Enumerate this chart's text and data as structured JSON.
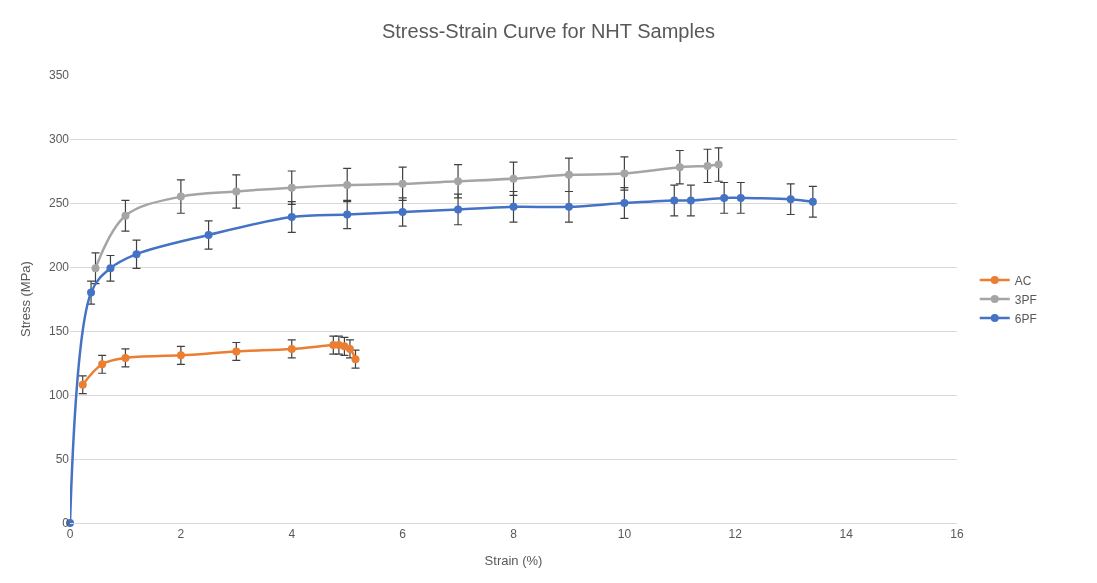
{
  "chart_data": {
    "type": "line",
    "title": "Stress-Strain Curve for NHT Samples",
    "xlabel": "Strain (%)",
    "ylabel": "Stress (MPa)",
    "series": [
      {
        "name": "AC",
        "color": "#ed7d31",
        "x": [
          0.23,
          0.58,
          1.0,
          2.0,
          3.0,
          4.0,
          4.75,
          4.85,
          4.95,
          5.05,
          5.15
        ],
        "values": [
          108,
          124,
          129,
          131,
          134,
          136,
          139,
          139,
          138,
          136,
          128
        ],
        "errors": [
          7,
          7,
          7,
          7,
          7,
          7,
          7,
          7,
          7,
          7,
          7
        ]
      },
      {
        "name": "3PF",
        "color": "#a5a5a5",
        "x": [
          0.46,
          1.0,
          2.0,
          3.0,
          4.0,
          5.0,
          6.0,
          7.0,
          8.0,
          9.0,
          10.0,
          11.0,
          11.5,
          11.7
        ],
        "values": [
          199,
          240,
          255,
          259,
          262,
          264,
          265,
          267,
          269,
          272,
          273,
          278,
          279,
          280
        ],
        "errors": [
          12,
          12,
          13,
          13,
          13,
          13,
          13,
          13,
          13,
          13,
          13,
          13,
          13,
          13
        ]
      },
      {
        "name": "6PF",
        "color": "#4472c4",
        "x": [
          0,
          0.38,
          0.73,
          1.2,
          2.5,
          4.0,
          5.0,
          6.0,
          7.0,
          8.0,
          9.0,
          10.0,
          10.9,
          11.2,
          11.8,
          12.1,
          13.0,
          13.4
        ],
        "values": [
          0,
          180,
          199,
          210,
          225,
          239,
          241,
          243,
          245,
          247,
          247,
          250,
          252,
          252,
          254,
          254,
          253,
          251
        ],
        "errors": [
          null,
          9,
          10,
          11,
          11,
          12,
          11,
          11,
          12,
          12,
          12,
          12,
          12,
          12,
          12,
          12,
          12,
          12
        ]
      }
    ],
    "xlim": [
      0,
      16
    ],
    "xticks": [
      0,
      2,
      4,
      6,
      8,
      10,
      12,
      14,
      16
    ],
    "ylim": [
      0,
      350
    ],
    "yticks": [
      0,
      50,
      100,
      150,
      200,
      250,
      300,
      350
    ],
    "grid": "y",
    "legend": "right",
    "marker": "circle",
    "line_style": "solid"
  }
}
